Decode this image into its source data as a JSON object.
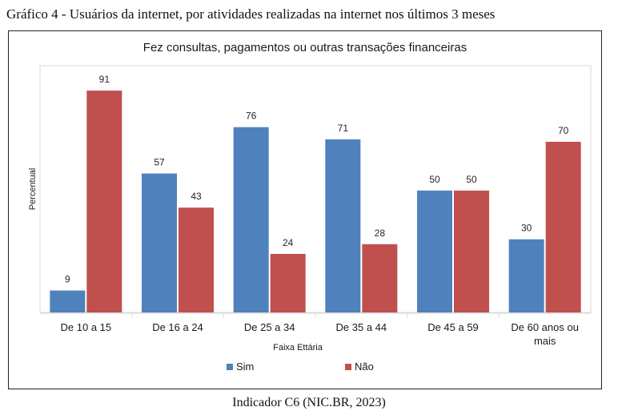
{
  "figure": {
    "caption": "Gráfico 4 - Usuários da internet, por atividades realizadas na internet nos últimos 3 meses",
    "source": "Indicador C6 (NIC.BR, 2023)"
  },
  "chart_data": {
    "type": "bar",
    "title": "Fez consultas, pagamentos ou outras transações financeiras",
    "xlabel": "Faixa Ettária",
    "ylabel": "Percentual",
    "ylim": [
      0,
      100
    ],
    "grid": false,
    "legend_position": "bottom",
    "categories": [
      [
        "De 10 a 15"
      ],
      [
        "De 16 a 24"
      ],
      [
        "De 25 a 34"
      ],
      [
        "De 35 a 44"
      ],
      [
        "De 45 a 59"
      ],
      [
        "De 60 anos ou",
        "mais"
      ]
    ],
    "series": [
      {
        "name": "Sim",
        "color": "#4f81bd",
        "values": [
          9,
          57,
          76,
          71,
          50,
          30
        ]
      },
      {
        "name": "Não",
        "color": "#c0504d",
        "values": [
          91,
          43,
          24,
          28,
          50,
          70
        ]
      }
    ]
  }
}
